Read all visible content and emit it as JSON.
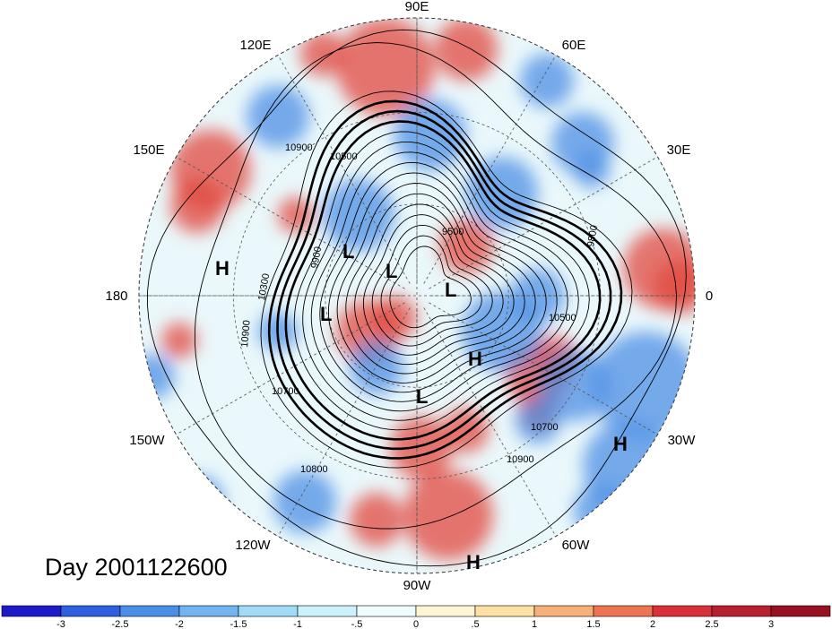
{
  "title": "Day 2001122600",
  "longitude_labels": [
    {
      "text": "90E"
    },
    {
      "text": "60E"
    },
    {
      "text": "30E"
    },
    {
      "text": "0"
    },
    {
      "text": "30W"
    },
    {
      "text": "60W"
    },
    {
      "text": "90W"
    },
    {
      "text": "120W"
    },
    {
      "text": "150W"
    },
    {
      "text": "180"
    },
    {
      "text": "150E"
    },
    {
      "text": "120E"
    }
  ],
  "pressure_centers": [
    {
      "type": "H"
    },
    {
      "type": "L"
    },
    {
      "type": "L"
    },
    {
      "type": "L"
    },
    {
      "type": "L"
    },
    {
      "type": "H"
    },
    {
      "type": "L"
    },
    {
      "type": "H"
    },
    {
      "type": "H"
    }
  ],
  "contour_labels": [
    "10900",
    "10500",
    "9500",
    "9900",
    "10300",
    "10900",
    "10700",
    "10900",
    "10700",
    "10500",
    "9800",
    "10800"
  ],
  "colorbar": {
    "ticks": [
      "-3",
      "-2.5",
      "-2",
      "-1.5",
      "-1",
      "-.5",
      "0",
      ".5",
      "1",
      "1.5",
      "2",
      "2.5",
      "3"
    ],
    "colors": [
      "#1c1ac9",
      "#2f5fe0",
      "#4a8ee8",
      "#72b4f0",
      "#a0dcf7",
      "#cbf1fb",
      "#eefcfd",
      "#fdf6d4",
      "#fce0a4",
      "#f6b07a",
      "#ee7452",
      "#d9313a",
      "#b7202e",
      "#96101f"
    ]
  },
  "colors": {
    "warm": "#e2483d",
    "cool": "#4d8fe4",
    "contour": "#000000"
  }
}
